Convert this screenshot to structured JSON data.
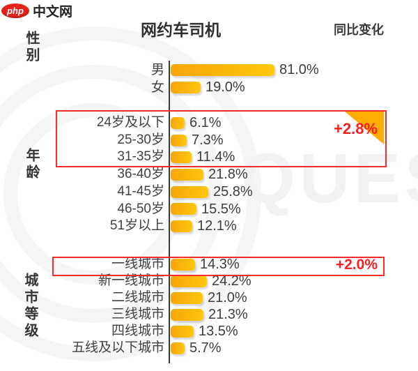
{
  "logo": {
    "badge": "php",
    "text": "中文网"
  },
  "header": {
    "title": "网约车司机",
    "right_label": "同比变化"
  },
  "watermark": "QUES",
  "colors": {
    "bar_gradient_start": "#f6a50a",
    "bar_gradient_end": "#ffc70d",
    "highlight_red": "#f92b2b",
    "triangle_orange": "#ffad06",
    "logo_red": "#e5231b",
    "text_dark": "#3d3d3d",
    "watermark_gray": "#f2f2f2"
  },
  "chart_data": {
    "type": "bar",
    "orientation": "horizontal",
    "title": "网约车司机",
    "right_column_header": "同比变化",
    "value_format": "percent",
    "xlim": [
      0,
      100
    ],
    "grid": false,
    "sections": [
      {
        "name": "性别",
        "categories": [
          "男",
          "女"
        ],
        "values": [
          81.0,
          19.0
        ]
      },
      {
        "name": "年龄",
        "categories": [
          "24岁及以下",
          "25-30岁",
          "31-35岁",
          "36-40岁",
          "41-45岁",
          "46-50岁",
          "51岁以上"
        ],
        "values": [
          6.1,
          7.3,
          11.4,
          21.8,
          25.8,
          15.5,
          12.1
        ]
      },
      {
        "name": "城市等级",
        "categories": [
          "一线城市",
          "新一线城市",
          "二线城市",
          "三线城市",
          "四线城市",
          "五线及以下城市"
        ],
        "values": [
          14.3,
          24.2,
          21.0,
          21.3,
          13.5,
          5.7
        ]
      }
    ],
    "highlights": [
      {
        "section": "年龄",
        "rows": [
          "24岁及以下",
          "25-30岁",
          "31-35岁"
        ],
        "change": "+2.8%"
      },
      {
        "section": "城市等级",
        "rows": [
          "一线城市"
        ],
        "change": "+2.0%"
      }
    ]
  }
}
